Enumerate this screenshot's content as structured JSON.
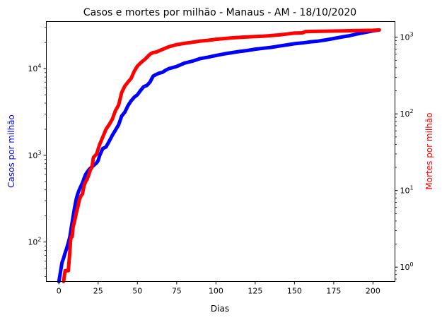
{
  "chart_data": {
    "type": "line",
    "title": "Casos e mortes por milhão - Manaus - AM - 18/10/2020",
    "xlabel": "Dias",
    "ylabel_left": "Casos por milhão",
    "ylabel_right": "Mortes por milhão",
    "xlim": [
      -8,
      214
    ],
    "ylim_left": [
      35,
      35000
    ],
    "ylim_right": [
      0.65,
      1600
    ],
    "yscale_left": "log",
    "yscale_right": "log",
    "grid": false,
    "legend": "none",
    "x_ticks": [
      0,
      25,
      50,
      75,
      100,
      125,
      150,
      175,
      200
    ],
    "y_ticks_left": [
      {
        "value": 100,
        "base": "10",
        "exp": "2"
      },
      {
        "value": 1000,
        "base": "10",
        "exp": "3"
      },
      {
        "value": 10000,
        "base": "10",
        "exp": "4"
      }
    ],
    "y_ticks_right": [
      {
        "value": 1,
        "base": "10",
        "exp": "0"
      },
      {
        "value": 10,
        "base": "10",
        "exp": "1"
      },
      {
        "value": 100,
        "base": "10",
        "exp": "2"
      },
      {
        "value": 1000,
        "base": "10",
        "exp": "3"
      }
    ],
    "series": [
      {
        "axis": "left",
        "color": "#0000ff",
        "x": [
          0,
          1,
          2,
          3,
          4,
          5,
          6,
          7,
          8,
          9,
          10,
          11,
          12,
          13,
          14,
          15,
          16,
          17,
          18,
          19,
          20,
          22,
          24,
          25,
          26,
          28,
          30,
          32,
          34,
          36,
          38,
          40,
          42,
          44,
          46,
          48,
          50,
          52,
          54,
          56,
          58,
          60,
          62,
          64,
          66,
          68,
          70,
          75,
          80,
          85,
          90,
          95,
          100,
          105,
          110,
          115,
          120,
          125,
          130,
          135,
          140,
          145,
          150,
          155,
          160,
          165,
          170,
          175,
          180,
          185,
          190,
          195,
          200,
          204
        ],
        "y": [
          35,
          45,
          58,
          65,
          75,
          85,
          98,
          115,
          150,
          195,
          250,
          310,
          360,
          400,
          440,
          480,
          540,
          600,
          640,
          680,
          710,
          760,
          820,
          870,
          1000,
          1200,
          1250,
          1450,
          1700,
          1950,
          2250,
          2850,
          3150,
          3750,
          4250,
          4700,
          5000,
          5600,
          6200,
          6400,
          7000,
          8200,
          8600,
          8900,
          9100,
          9600,
          10000,
          10600,
          11600,
          12200,
          13100,
          13600,
          14200,
          14800,
          15300,
          15800,
          16200,
          16800,
          17200,
          17600,
          18200,
          18800,
          19400,
          19800,
          20400,
          20800,
          21500,
          22300,
          23200,
          24000,
          25200,
          26200,
          27300,
          28000
        ]
      },
      {
        "axis": "right",
        "color": "#ff0000",
        "x": [
          3,
          4,
          5,
          6,
          7,
          7.5,
          8,
          8.5,
          9,
          10,
          11,
          12,
          13,
          14,
          15,
          16,
          17,
          18,
          19,
          20,
          21,
          22,
          24,
          26,
          28,
          30,
          32,
          34,
          36,
          38,
          40,
          42,
          44,
          46,
          48,
          50,
          52,
          55,
          58,
          60,
          62,
          65,
          70,
          75,
          80,
          85,
          90,
          95,
          100,
          110,
          120,
          130,
          135,
          140,
          145,
          150,
          155,
          157,
          160,
          170,
          180,
          190,
          200,
          204
        ],
        "y": [
          0.65,
          0.9,
          0.9,
          0.9,
          1.6,
          2.3,
          2.5,
          2.5,
          3.3,
          4.0,
          5.0,
          6.0,
          7.5,
          8.5,
          9.0,
          11.5,
          13.0,
          14.0,
          16.0,
          18.5,
          20.0,
          27.0,
          30.0,
          40.0,
          50.0,
          63.0,
          72.0,
          85.0,
          110.0,
          130.0,
          190.0,
          230.0,
          260.0,
          290.0,
          360.0,
          420.0,
          460.0,
          520.0,
          600.0,
          630.0,
          640.0,
          680.0,
          750.0,
          800.0,
          830.0,
          860.0,
          890.0,
          910.0,
          940.0,
          980.0,
          1010.0,
          1030.0,
          1050.0,
          1070.0,
          1100.0,
          1130.0,
          1140.0,
          1180.0,
          1190.0,
          1200.0,
          1210.0,
          1220.0,
          1230.0,
          1240.0
        ]
      }
    ]
  }
}
